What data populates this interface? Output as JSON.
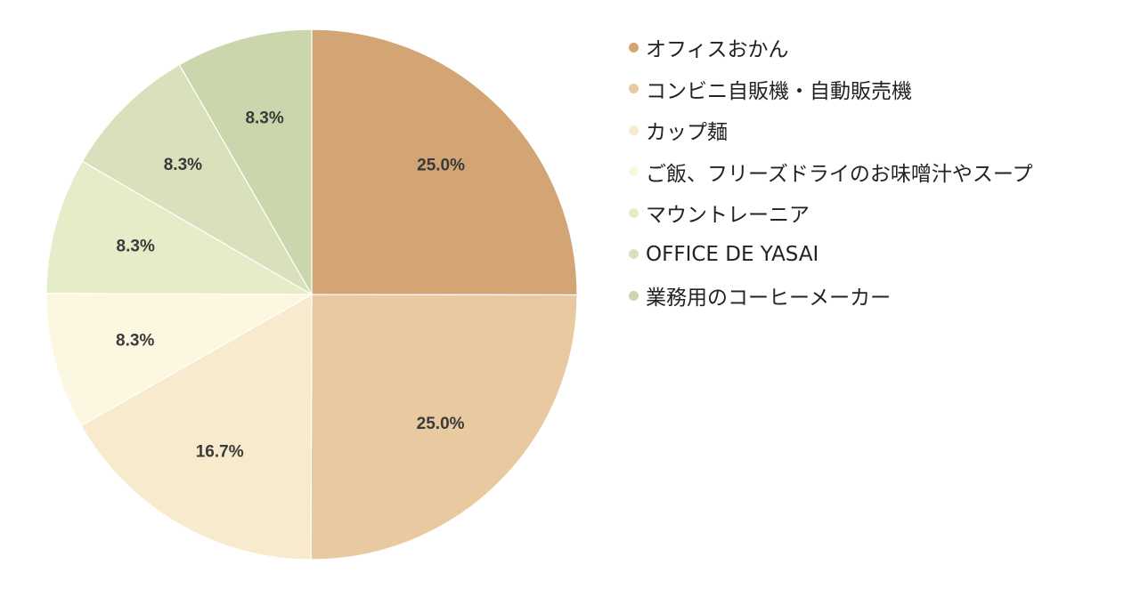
{
  "chart_data": {
    "type": "pie",
    "start": "12 o'clock",
    "direction": "clockwise",
    "legend_position": "right",
    "slices": [
      {
        "label": "オフィスおかん",
        "value": 25.0,
        "display": "25.0%",
        "color": "#d3a474"
      },
      {
        "label": "コンビニ自販機・自動販売機",
        "value": 25.0,
        "display": "25.0%",
        "color": "#e8c9a0"
      },
      {
        "label": "カップ麺",
        "value": 16.7,
        "display": "16.7%",
        "color": "#f8ebcd"
      },
      {
        "label": "ご飯、フリーズドライのお味噌汁やスープ",
        "value": 8.3,
        "display": "8.3%",
        "color": "#fcf7e0"
      },
      {
        "label": "マウントレーニア",
        "value": 8.3,
        "display": "8.3%",
        "color": "#e7ecc8"
      },
      {
        "label": "OFFICE DE YASAI",
        "value": 8.3,
        "display": "8.3%",
        "color": "#d9e0bc"
      },
      {
        "label": "業務用のコーヒーメーカー",
        "value": 8.3,
        "display": "8.3%",
        "color": "#ccd6ac"
      }
    ]
  }
}
